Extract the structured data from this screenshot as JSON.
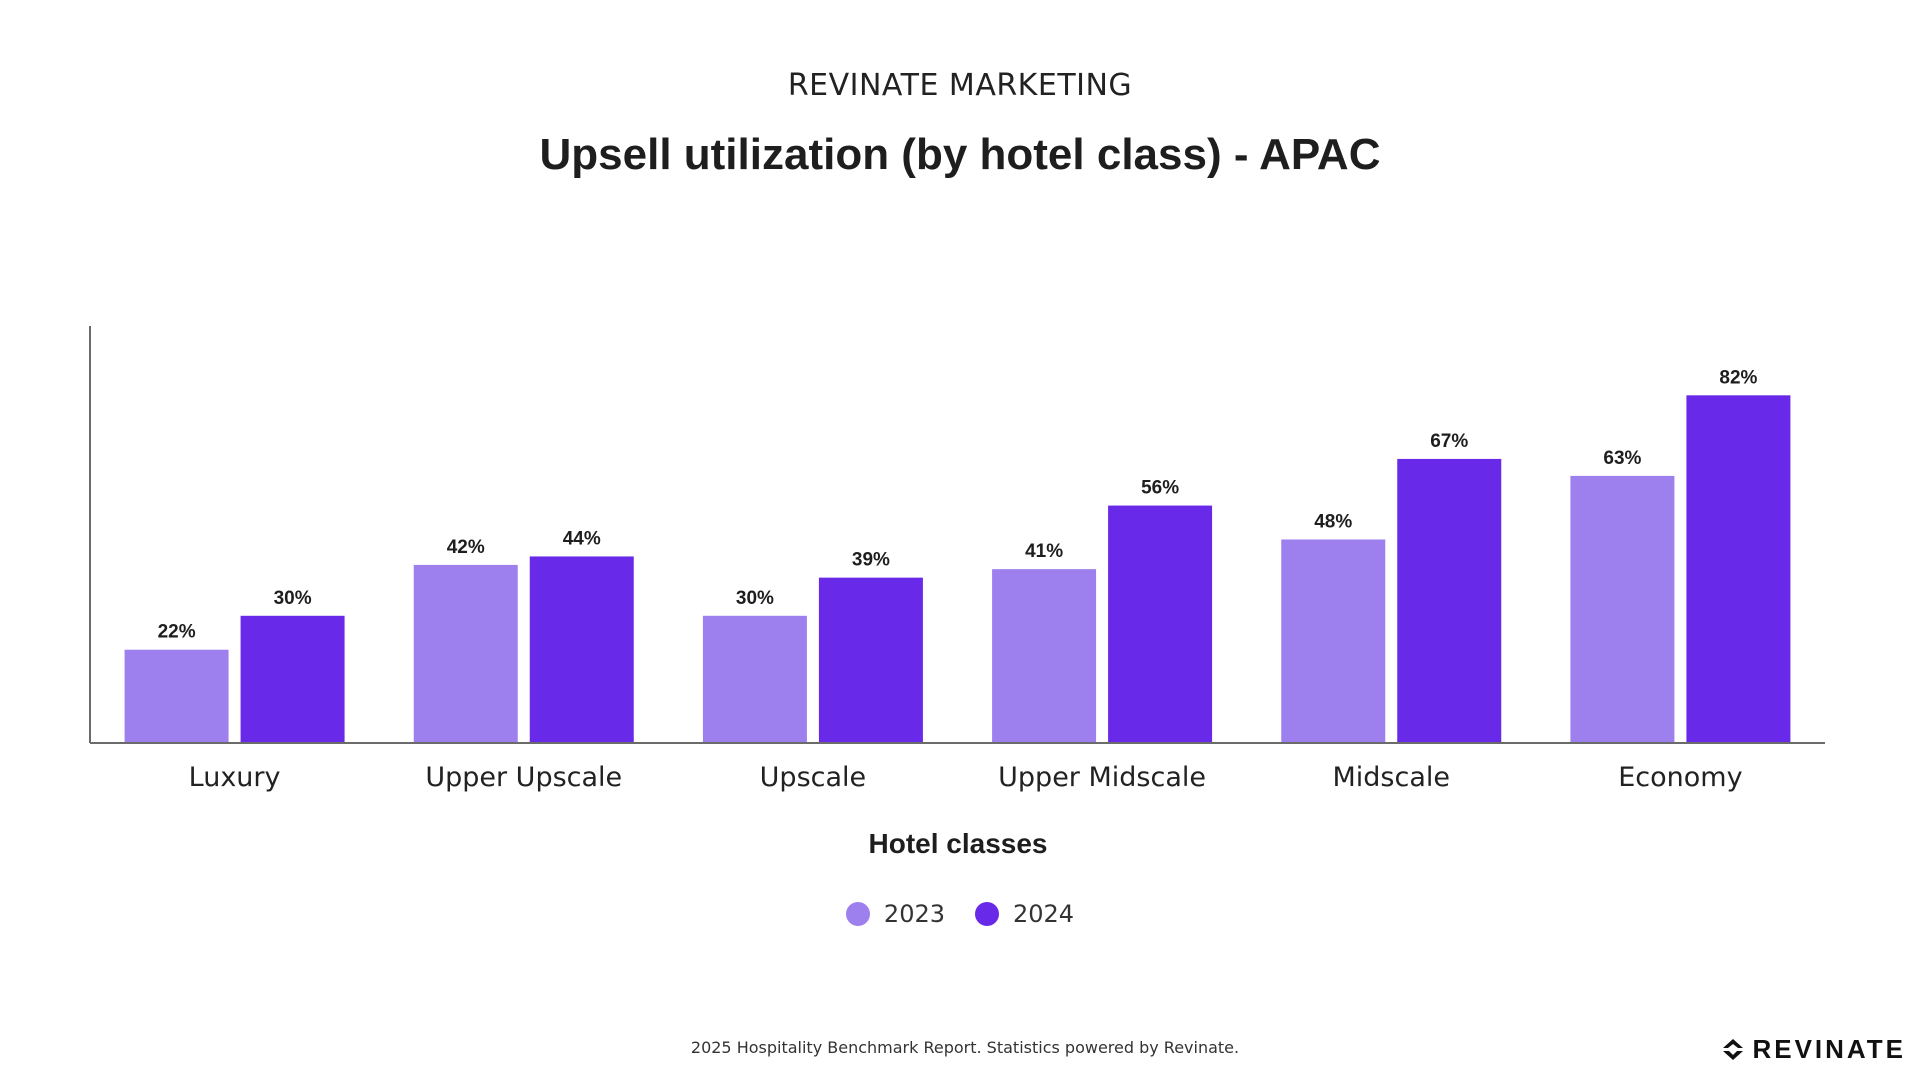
{
  "header": {
    "brand": "REVINATE MARKETING",
    "title": "Upsell utilization (by hotel class) - APAC"
  },
  "chart_data": {
    "type": "bar",
    "title": "Upsell utilization (by hotel class) - APAC",
    "xlabel": "Hotel classes",
    "ylabel": "",
    "categories": [
      "Luxury",
      "Upper Upscale",
      "Upscale",
      "Upper Midscale",
      "Midscale",
      "Economy"
    ],
    "series": [
      {
        "name": "2023",
        "values": [
          22,
          42,
          30,
          41,
          48,
          63
        ],
        "color": "#9d7fee"
      },
      {
        "name": "2024",
        "values": [
          30,
          44,
          39,
          56,
          67,
          82
        ],
        "color": "#6929e8"
      }
    ],
    "value_suffix": "%",
    "ylim": [
      0,
      100
    ],
    "grid": false,
    "legend_position": "bottom-center"
  },
  "footer": {
    "note": "2025 Hospitality Benchmark Report. Statistics powered by Revinate.",
    "logo_text": "REVINATE"
  },
  "colors": {
    "axis": "#6b6b6b",
    "text_dark": "#1e1e1e"
  }
}
